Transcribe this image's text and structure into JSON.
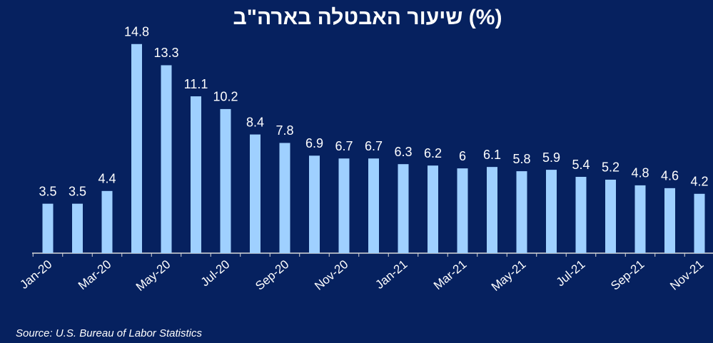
{
  "chart_data": {
    "type": "bar",
    "title": "שיעור האבטלה בארה\"ב (%)",
    "source": "Source: U.S. Bureau of Labor Statistics",
    "categories": [
      "Jan-20",
      null,
      "Mar-20",
      null,
      "May-20",
      null,
      "Jul-20",
      null,
      "Sep-20",
      null,
      "Nov-20",
      null,
      "Jan-21",
      null,
      "Mar-21",
      null,
      "May-21",
      null,
      "Jul-21",
      null,
      "Sep-21",
      null,
      "Nov-21"
    ],
    "values": [
      3.5,
      3.5,
      4.4,
      14.8,
      13.3,
      11.1,
      10.2,
      8.4,
      7.8,
      6.9,
      6.7,
      6.7,
      6.3,
      6.2,
      6,
      6.1,
      5.8,
      5.9,
      5.4,
      5.2,
      4.8,
      4.6,
      4.2
    ],
    "color": "#9fd0ff",
    "ylim": [
      0,
      16
    ]
  }
}
